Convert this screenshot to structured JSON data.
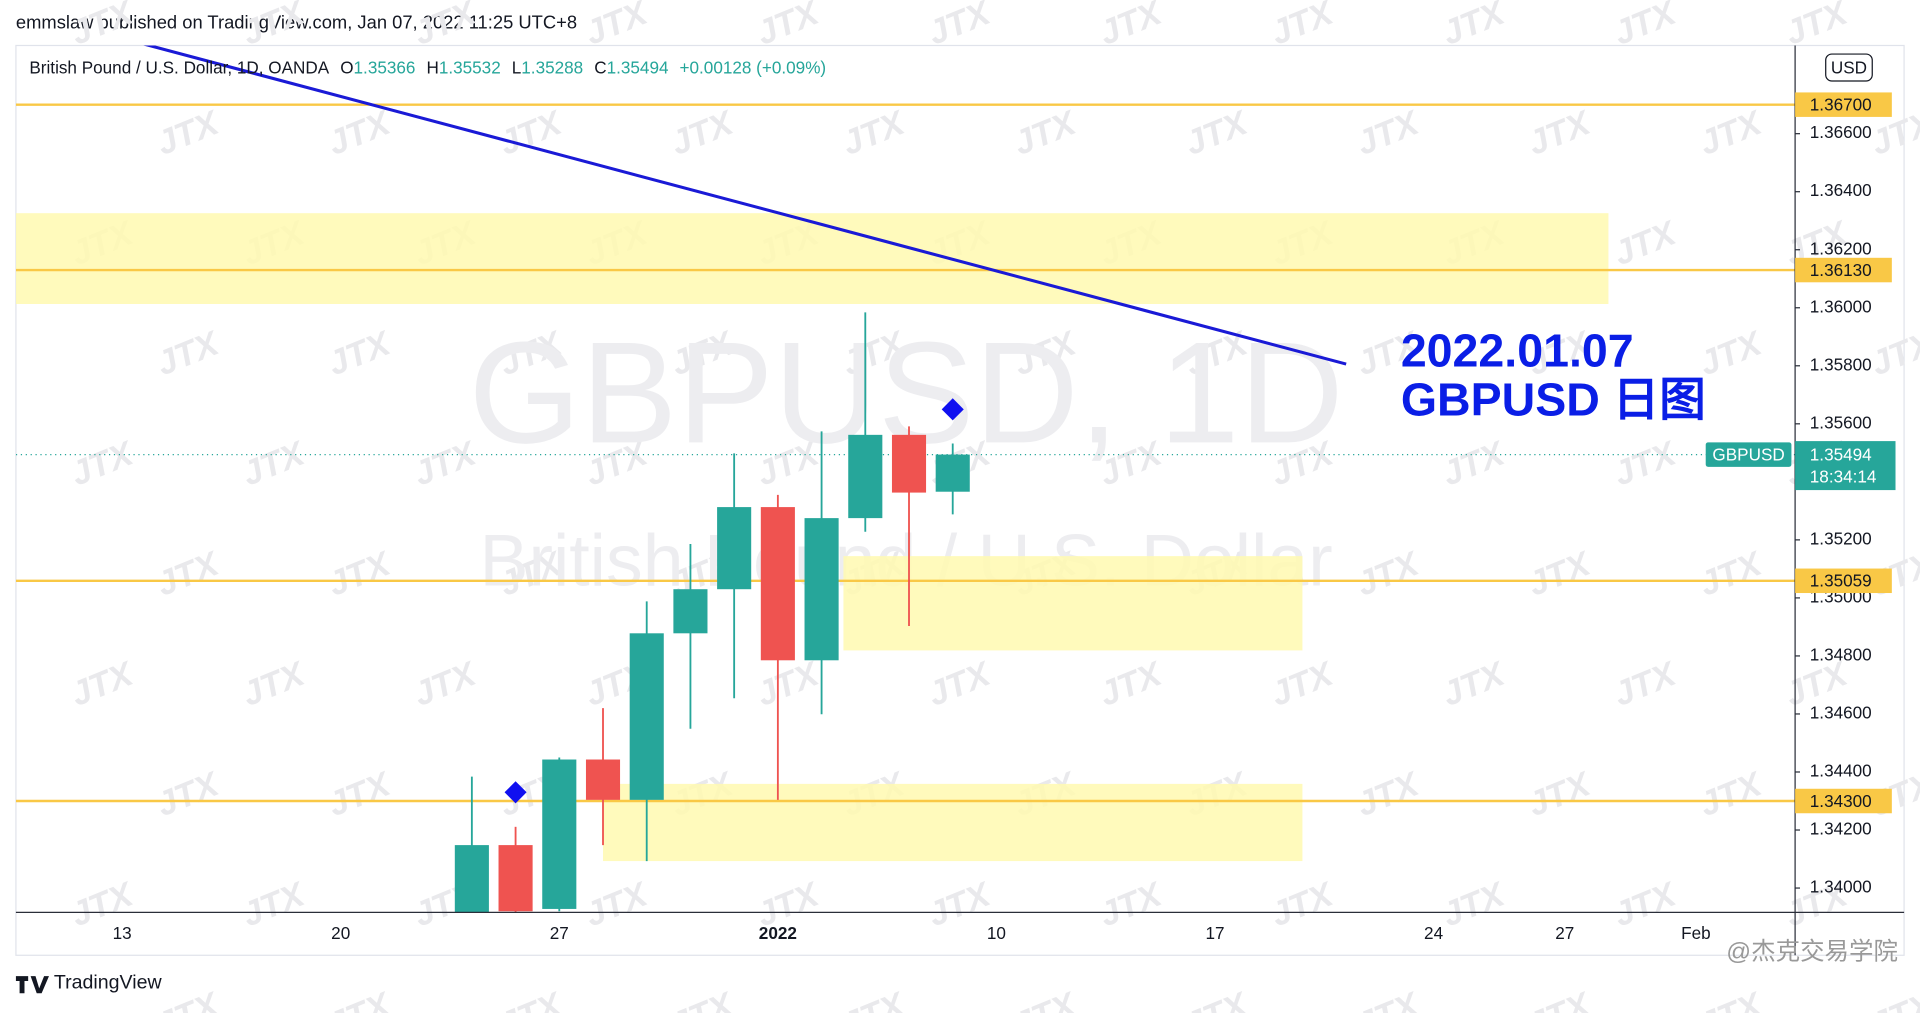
{
  "header": {
    "publisher": "emmslaw published on TradingView.com, Jan 07, 2022 11:25 UTC+8"
  },
  "chart_data": {
    "type": "candlestick",
    "symbol": "British Pound / U.S. Dollar, 1D, OANDA",
    "legend_labels": {
      "open": "O",
      "high": "H",
      "low": "L",
      "close": "C"
    },
    "change": "+0.00128 (+0.09%)",
    "watermark_title": "GBPUSD, 1D",
    "watermark_subtitle": "British Pound / U.S. Dollar",
    "watermark_mark": "JTX",
    "annotation": [
      "2022.01.07",
      "GBPUSD 日图"
    ],
    "categories": [
      "13",
      null,
      null,
      null,
      null,
      "20",
      null,
      null,
      null,
      null,
      "27",
      null,
      null,
      null,
      null,
      "2022",
      null,
      null,
      null,
      null,
      "10",
      null,
      null,
      null,
      null,
      "17",
      null,
      null,
      null,
      null,
      "24",
      null,
      null,
      "27",
      null,
      null,
      "Feb",
      null,
      null
    ],
    "open": [
      null,
      null,
      null,
      null,
      null,
      null,
      null,
      null,
      1.339,
      1.34148,
      1.33928,
      1.34443,
      1.34304,
      1.34878,
      1.3503,
      1.35313,
      1.34785,
      1.35275,
      1.35562,
      1.35366,
      null,
      null,
      null,
      null,
      null,
      null,
      null,
      null,
      null,
      null,
      null,
      null,
      null,
      null,
      null,
      null,
      null,
      null,
      null
    ],
    "high": [
      null,
      null,
      null,
      null,
      null,
      null,
      null,
      null,
      1.34384,
      1.34211,
      1.3445,
      1.3462,
      1.34988,
      1.35186,
      1.35498,
      1.35355,
      1.35574,
      1.35984,
      1.35591,
      1.35532,
      null,
      null,
      null,
      null,
      null,
      null,
      null,
      null,
      null,
      null,
      null,
      null,
      null,
      null,
      null,
      null,
      null,
      null,
      null
    ],
    "low": [
      null,
      null,
      null,
      null,
      null,
      null,
      null,
      null,
      1.3388,
      1.3391,
      1.3392,
      1.34148,
      1.34093,
      1.34549,
      1.34654,
      1.34304,
      1.34599,
      1.35228,
      1.34903,
      1.35288,
      null,
      null,
      null,
      null,
      null,
      null,
      null,
      null,
      null,
      null,
      null,
      null,
      null,
      null,
      null,
      null,
      null,
      null,
      null
    ],
    "close": [
      null,
      null,
      null,
      null,
      null,
      null,
      null,
      null,
      1.34148,
      1.3392,
      1.34443,
      1.34304,
      1.34878,
      1.3503,
      1.35313,
      1.34785,
      1.35275,
      1.35562,
      1.35363,
      1.35494,
      null,
      null,
      null,
      null,
      null,
      null,
      null,
      null,
      null,
      null,
      null,
      null,
      null,
      null,
      null,
      null,
      null,
      null,
      null
    ],
    "up_color": "#26a69a",
    "down_color": "#ef5350",
    "xlim": [
      -2.43,
      38.27
    ],
    "ylim": [
      1.33916,
      1.36904
    ],
    "yticks": [
      {
        "value": 1.34,
        "label": "1.34000"
      },
      {
        "value": 1.342,
        "label": "1.34200"
      },
      {
        "value": 1.344,
        "label": "1.34400"
      },
      {
        "value": 1.346,
        "label": "1.34600"
      },
      {
        "value": 1.348,
        "label": "1.34800"
      },
      {
        "value": 1.35,
        "label": "1.35000"
      },
      {
        "value": 1.352,
        "label": "1.35200"
      },
      {
        "value": 1.356,
        "label": "1.35600"
      },
      {
        "value": 1.358,
        "label": "1.35800"
      },
      {
        "value": 1.36,
        "label": "1.36000"
      },
      {
        "value": 1.362,
        "label": "1.36200"
      },
      {
        "value": 1.364,
        "label": "1.36400"
      },
      {
        "value": 1.366,
        "label": "1.36600"
      }
    ],
    "currency": "USD",
    "last_price": {
      "ticker": "GBPUSD",
      "countdown": "18:34:14"
    },
    "levels": [
      {
        "value": 1.367,
        "label": "1.36700"
      },
      {
        "value": 1.3613,
        "label": "1.36130"
      },
      {
        "value": 1.35059,
        "label": "1.35059"
      },
      {
        "value": 1.343,
        "label": "1.34300"
      }
    ],
    "level_color": "#f9c846",
    "zones": [
      {
        "x": [
          -2.43,
          34.0
        ],
        "y": [
          1.36013,
          1.36326
        ]
      },
      {
        "x": [
          16.5,
          27.0
        ],
        "y": [
          1.34819,
          1.35144
        ]
      },
      {
        "x": [
          11.0,
          27.0
        ],
        "y": [
          1.34093,
          1.34359
        ]
      }
    ],
    "zone_color": "#fff9b0",
    "trendline": {
      "x": [
        0.42,
        28.0
      ],
      "y": [
        1.36912,
        1.35806
      ],
      "color": "#1a1ad6"
    },
    "markers": {
      "x": [
        9,
        19
      ],
      "y": [
        1.3433,
        1.3565
      ],
      "color": "#1010f0"
    }
  },
  "footer": {
    "brand": "TradingView",
    "credit": "@杰克交易学院"
  }
}
